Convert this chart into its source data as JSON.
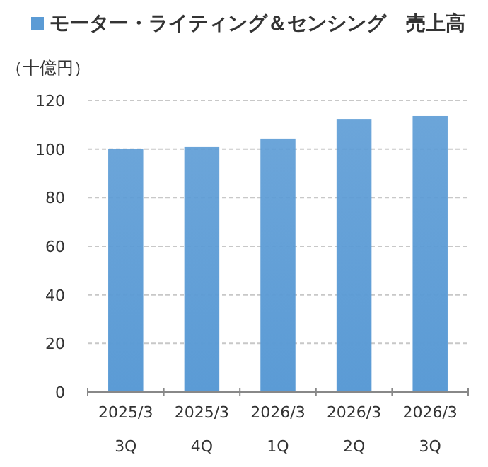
{
  "chart_data": {
    "type": "bar",
    "ylabel": "（十億円）",
    "categories": [
      "2025/3\n3Q",
      "2025/3\n4Q",
      "2026/3\n1Q",
      "2026/3\n2Q",
      "2026/3\n3Q"
    ],
    "series": [
      {
        "name": "モーター・ライティング＆センシング　売上高",
        "color": "#5b9bd5",
        "values": [
          100.2,
          100.8,
          104.3,
          112.4,
          113.6
        ]
      }
    ],
    "ylim": [
      0,
      120
    ],
    "yticks": [
      0,
      20,
      40,
      60,
      80,
      100,
      120
    ],
    "grid": "y",
    "legend": "top"
  }
}
